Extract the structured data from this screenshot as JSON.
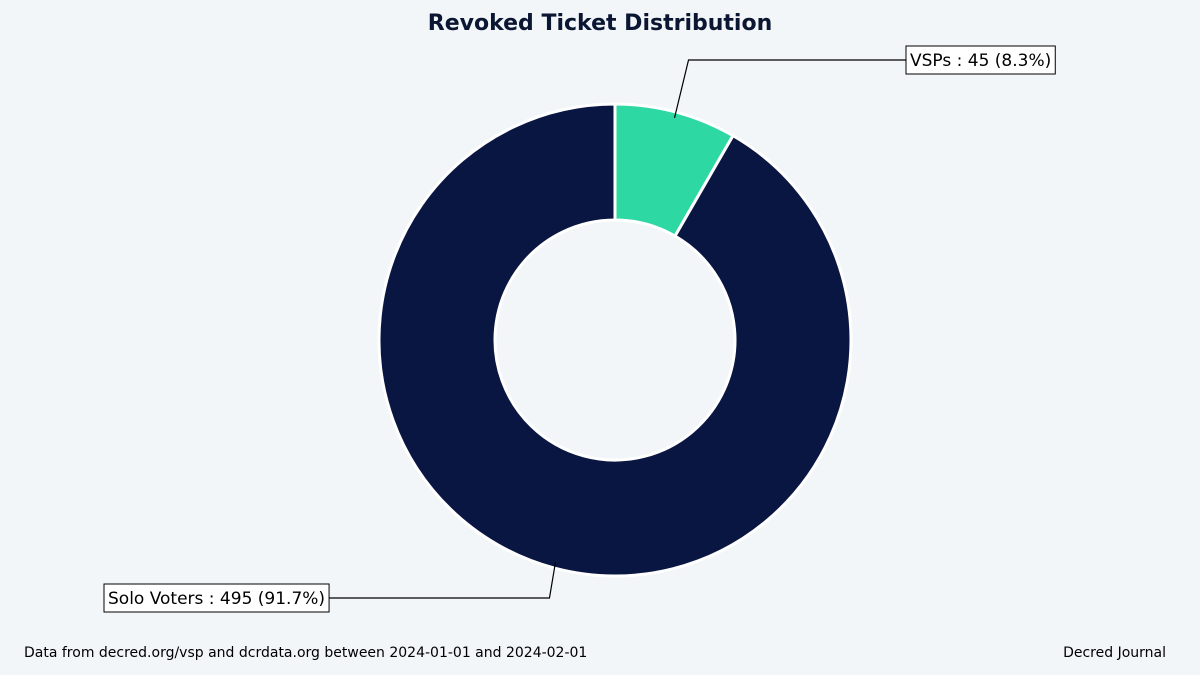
{
  "chart_data": {
    "type": "pie",
    "title": "Revoked Ticket Distribution",
    "donut": true,
    "start_angle_deg": 90,
    "direction": "clockwise",
    "slices": [
      {
        "label": "VSPs",
        "value": 45,
        "percent": 8.3,
        "color": "#2ed8a3",
        "annotation": "VSPs : 45 (8.3%)"
      },
      {
        "label": "Solo Voters",
        "value": 495,
        "percent": 91.7,
        "color": "#0a1642",
        "annotation": "Solo Voters : 495 (91.7%)"
      }
    ],
    "edge_color": "#ffffff"
  },
  "footer": {
    "source": "Data from decred.org/vsp and dcrdata.org between 2024-01-01 and 2024-02-01",
    "credit": "Decred Journal"
  }
}
